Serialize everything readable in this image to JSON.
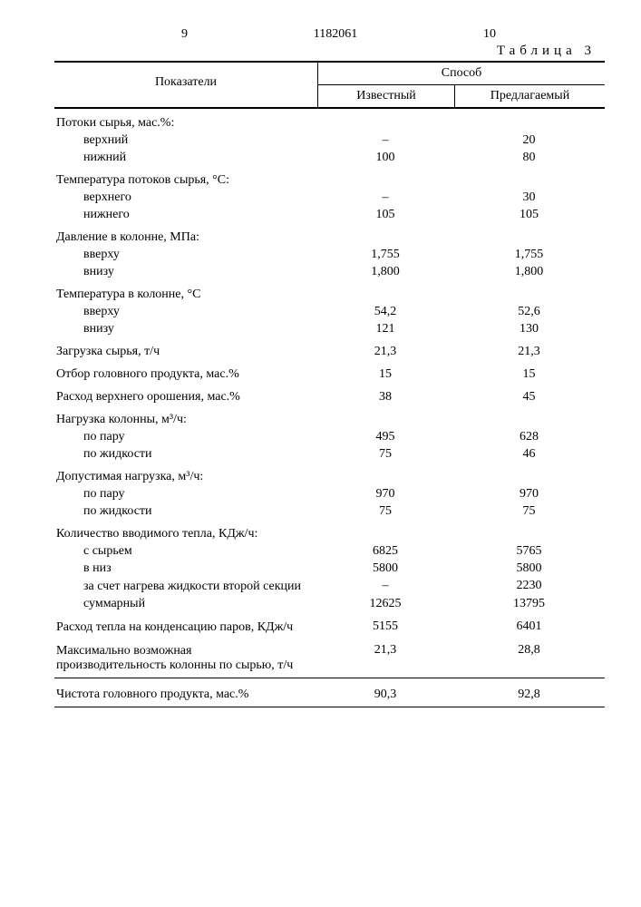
{
  "page": {
    "left_num": "9",
    "doc_num": "1182061",
    "right_num": "10",
    "table_label": "Таблица 3"
  },
  "header": {
    "indicators": "Показатели",
    "sposob": "Способ",
    "izvestny": "Известный",
    "predlag": "Предлагаемый"
  },
  "rows": [
    {
      "t": "h",
      "l": "Потоки сырья, мас.%:"
    },
    {
      "t": "i",
      "l": "верхний",
      "a": "–",
      "b": "20"
    },
    {
      "t": "i",
      "l": "нижний",
      "a": "100",
      "b": "80"
    },
    {
      "t": "h",
      "l": "Температура потоков сырья, °С:"
    },
    {
      "t": "i",
      "l": "верхнего",
      "a": "–",
      "b": "30"
    },
    {
      "t": "i",
      "l": "нижнего",
      "a": "105",
      "b": "105"
    },
    {
      "t": "h",
      "l": "Давление в колонне, МПа:"
    },
    {
      "t": "i",
      "l": "вверху",
      "a": "1,755",
      "b": "1,755"
    },
    {
      "t": "i",
      "l": "внизу",
      "a": "1,800",
      "b": "1,800"
    },
    {
      "t": "h",
      "l": "Температура в колонне, °С"
    },
    {
      "t": "i",
      "l": "вверху",
      "a": "54,2",
      "b": "52,6"
    },
    {
      "t": "i",
      "l": "внизу",
      "a": "121",
      "b": "130"
    },
    {
      "t": "s",
      "l": "Загрузка сырья, т/ч",
      "a": "21,3",
      "b": "21,3"
    },
    {
      "t": "s",
      "l": "Отбор головного продукта, мас.%",
      "a": "15",
      "b": "15"
    },
    {
      "t": "s",
      "l": "Расход верхнего орошения, мас.%",
      "a": "38",
      "b": "45"
    },
    {
      "t": "h",
      "l": "Нагрузка колонны, м³/ч:"
    },
    {
      "t": "i",
      "l": "по пару",
      "a": "495",
      "b": "628"
    },
    {
      "t": "i",
      "l": "по жидкости",
      "a": "75",
      "b": "46"
    },
    {
      "t": "h",
      "l": "Допустимая нагрузка, м³/ч:"
    },
    {
      "t": "i",
      "l": "по пару",
      "a": "970",
      "b": "970"
    },
    {
      "t": "i",
      "l": "по жидкости",
      "a": "75",
      "b": "75"
    },
    {
      "t": "h",
      "l": "Количество вводимого тепла, КДж/ч:"
    },
    {
      "t": "i",
      "l": "с сырьем",
      "a": "6825",
      "b": "5765"
    },
    {
      "t": "i",
      "l": "в низ",
      "a": "5800",
      "b": "5800"
    },
    {
      "t": "i2",
      "l": "за счет нагрева жидкости второй секции",
      "a": "–",
      "b": "2230"
    },
    {
      "t": "i",
      "l": "суммарный",
      "a": "12625",
      "b": "13795"
    },
    {
      "t": "s2",
      "l": "Расход тепла на конденсацию паров, КДж/ч",
      "a": "5155",
      "b": "6401"
    },
    {
      "t": "s2",
      "l": "Максимально возможная производительность колонны по сырью, т/ч",
      "a": "21,3",
      "b": "28,8"
    },
    {
      "t": "rule"
    },
    {
      "t": "s",
      "l": "Чистота головного продукта, мас.%",
      "a": "90,3",
      "b": "92,8"
    },
    {
      "t": "rule"
    }
  ]
}
